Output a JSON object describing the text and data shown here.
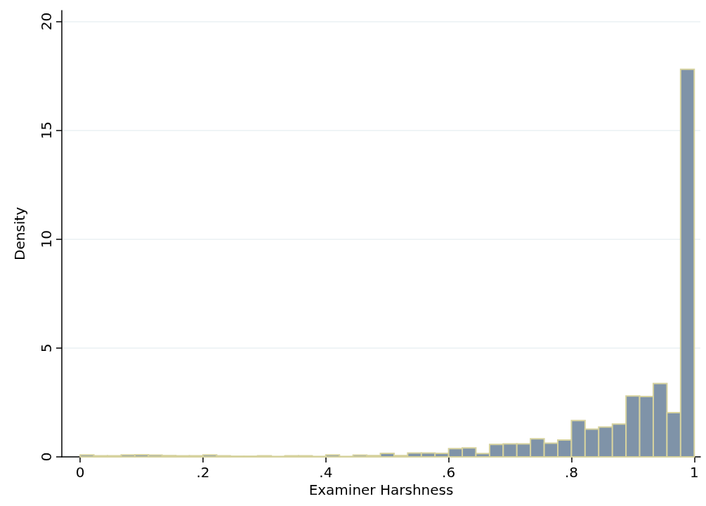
{
  "chart_data": {
    "type": "histogram",
    "xlabel": "Examiner Harshness",
    "ylabel": "Density",
    "bins": [
      0,
      0.0222,
      0.0444,
      0.0667,
      0.0889,
      0.1111,
      0.1333,
      0.1556,
      0.1778,
      0.2,
      0.2222,
      0.2444,
      0.2667,
      0.2889,
      0.3111,
      0.3333,
      0.3556,
      0.3778,
      0.4,
      0.4222,
      0.4444,
      0.4667,
      0.4889,
      0.5111,
      0.5333,
      0.5556,
      0.5778,
      0.6,
      0.6222,
      0.6444,
      0.6667,
      0.6889,
      0.7111,
      0.7333,
      0.7556,
      0.7778,
      0.8,
      0.8222,
      0.8444,
      0.8667,
      0.8889,
      0.9111,
      0.9333,
      0.9556,
      0.9778,
      1
    ],
    "values": [
      0.09,
      0.05,
      0.05,
      0.09,
      0.1,
      0.08,
      0.06,
      0.05,
      0.05,
      0.09,
      0.05,
      0.03,
      0.03,
      0.05,
      0.02,
      0.05,
      0.05,
      0.02,
      0.09,
      0.02,
      0.08,
      0.06,
      0.16,
      0.06,
      0.18,
      0.18,
      0.16,
      0.38,
      0.41,
      0.15,
      0.57,
      0.6,
      0.6,
      0.83,
      0.63,
      0.77,
      1.67,
      1.27,
      1.37,
      1.51,
      2.8,
      2.77,
      3.37,
      2.03,
      17.8
    ],
    "color": "#7f93a8",
    "xlim": [
      -0.03,
      1.01
    ],
    "xticks": [
      0,
      {
        "value": 0.2,
        "label": ".2"
      },
      {
        "value": 0.4,
        "label": ".4"
      },
      {
        "value": 0.6,
        "label": ".6"
      },
      {
        "value": 0.8,
        "label": ".8"
      },
      1
    ],
    "ylim": [
      0,
      20.5
    ],
    "yticks": [
      0,
      5,
      10,
      15,
      20
    ],
    "grid": "y"
  }
}
